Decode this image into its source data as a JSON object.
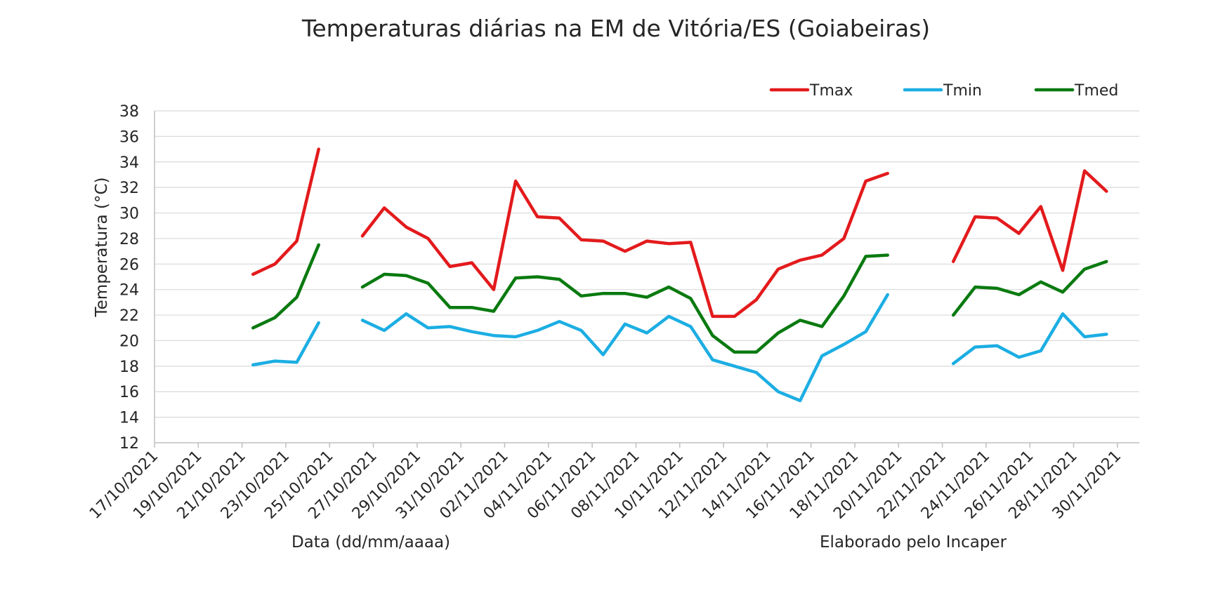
{
  "chart_data": {
    "type": "line",
    "title": "Temperaturas diárias na EM de Vitória/ES (Goiabeiras)",
    "ylabel": "Temperatura (°C)",
    "xlabel": "Data (dd/mm/aaaa)",
    "note": "Elaborado pelo Incaper",
    "ylim": [
      12,
      38
    ],
    "yticks": [
      12,
      14,
      16,
      18,
      20,
      22,
      24,
      26,
      28,
      30,
      32,
      34,
      36,
      38
    ],
    "xlim": [
      "2021-10-17",
      "2021-12-01"
    ],
    "xtick_labels": [
      "17/10/2021",
      "19/10/2021",
      "21/10/2021",
      "23/10/2021",
      "25/10/2021",
      "27/10/2021",
      "29/10/2021",
      "31/10/2021",
      "02/11/2021",
      "04/11/2021",
      "06/11/2021",
      "08/11/2021",
      "10/11/2021",
      "12/11/2021",
      "14/11/2021",
      "16/11/2021",
      "18/11/2021",
      "20/11/2021",
      "22/11/2021",
      "24/11/2021",
      "26/11/2021",
      "28/11/2021",
      "30/11/2021"
    ],
    "grid": "horizontal",
    "legend_position": "top-right",
    "x": [
      "2021-10-21",
      "2021-10-22",
      "2021-10-23",
      "2021-10-24",
      "2021-10-25",
      "2021-10-26",
      "2021-10-27",
      "2021-10-28",
      "2021-10-29",
      "2021-10-30",
      "2021-10-31",
      "2021-11-01",
      "2021-11-02",
      "2021-11-03",
      "2021-11-04",
      "2021-11-05",
      "2021-11-06",
      "2021-11-07",
      "2021-11-08",
      "2021-11-09",
      "2021-11-10",
      "2021-11-11",
      "2021-11-12",
      "2021-11-13",
      "2021-11-14",
      "2021-11-15",
      "2021-11-16",
      "2021-11-17",
      "2021-11-18",
      "2021-11-19",
      "2021-11-20",
      "2021-11-21",
      "2021-11-22",
      "2021-11-23",
      "2021-11-24",
      "2021-11-25",
      "2021-11-26",
      "2021-11-27",
      "2021-11-28",
      "2021-11-29"
    ],
    "series": [
      {
        "name": "Tmax",
        "color": "#e31a1c",
        "values": [
          25.2,
          26.0,
          27.8,
          35.0,
          null,
          28.2,
          30.4,
          28.9,
          28.0,
          25.8,
          26.1,
          24.0,
          32.5,
          29.7,
          29.6,
          27.9,
          27.8,
          27.0,
          27.8,
          27.6,
          27.7,
          21.9,
          21.9,
          23.2,
          25.6,
          26.3,
          26.7,
          28.0,
          32.5,
          33.1,
          null,
          null,
          26.2,
          29.7,
          29.6,
          28.4,
          30.5,
          25.5,
          33.3,
          31.7
        ]
      },
      {
        "name": "Tmin",
        "color": "#1caee3",
        "values": [
          18.1,
          18.4,
          18.3,
          21.4,
          null,
          21.6,
          20.8,
          22.1,
          21.0,
          21.1,
          20.7,
          20.4,
          20.3,
          20.8,
          21.5,
          20.8,
          18.9,
          21.3,
          20.6,
          21.9,
          21.1,
          18.5,
          18.0,
          17.5,
          16.0,
          15.3,
          18.8,
          19.7,
          20.7,
          23.6,
          null,
          null,
          18.2,
          19.5,
          19.6,
          18.7,
          19.2,
          22.1,
          20.3,
          20.5
        ]
      },
      {
        "name": "Tmed",
        "color": "#0a7a10",
        "values": [
          21.0,
          21.8,
          23.4,
          27.5,
          null,
          24.2,
          25.2,
          25.1,
          24.5,
          22.6,
          22.6,
          22.3,
          24.9,
          25.0,
          24.8,
          23.5,
          23.7,
          23.7,
          23.4,
          24.2,
          23.3,
          20.4,
          19.1,
          19.1,
          20.6,
          21.6,
          21.1,
          23.5,
          26.6,
          26.7,
          null,
          null,
          22.0,
          24.2,
          24.1,
          23.6,
          24.6,
          23.8,
          25.6,
          26.2
        ]
      }
    ]
  }
}
